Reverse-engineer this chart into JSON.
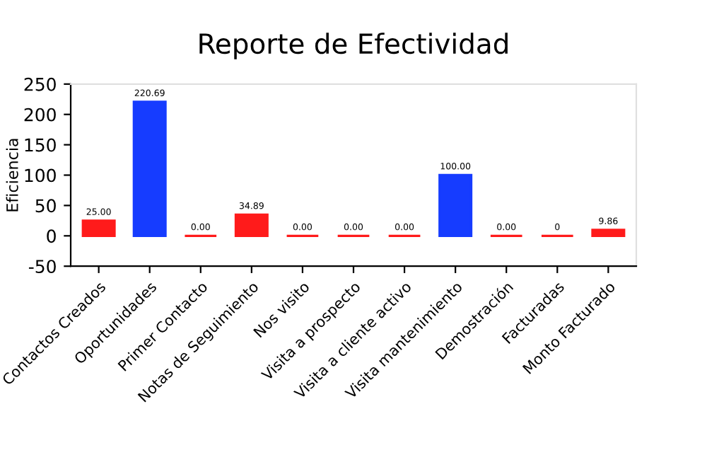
{
  "chart_data": {
    "type": "bar",
    "title": "Reporte de Efectividad",
    "ylabel": "Eficiencia",
    "categories": [
      "Contactos Creados",
      "Oportunidades",
      "Primer Contacto",
      "Notas de Seguimiento",
      "Nos visito",
      "Visita a prospecto",
      "Visita a cliente activo",
      "Visita mantenimiento",
      "Demostración",
      "Facturadas",
      "Monto Facturado"
    ],
    "values": [
      25,
      220.69,
      0,
      34.89,
      0,
      0,
      0,
      100,
      0,
      0,
      9.86
    ],
    "value_labels": [
      "25.00",
      "220.69",
      "0.00",
      "34.89",
      "0.00",
      "0.00",
      "0.00",
      "100.00",
      "0.00",
      "0",
      "9.86"
    ],
    "colors": [
      "#ff0f0f",
      "#0a32ff",
      "#ff0f0f",
      "#ff0f0f",
      "#ff0f0f",
      "#ff0f0f",
      "#ff0f0f",
      "#0a32ff",
      "#ff0f0f",
      "#ff0f0f",
      "#ff0f0f"
    ],
    "ylim": [
      -50,
      250
    ],
    "yticks": [
      -50,
      0,
      50,
      100,
      150,
      200,
      250
    ],
    "grid": false,
    "legend": false
  }
}
